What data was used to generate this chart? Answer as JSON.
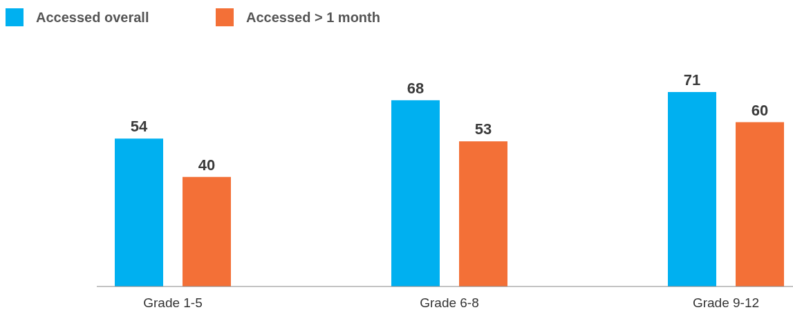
{
  "chart_data": {
    "type": "bar",
    "categories": [
      "Grade 1-5",
      "Grade 6-8",
      "Grade 9-12"
    ],
    "series": [
      {
        "name": "Accessed overall",
        "color": "#00b0f0",
        "values": [
          54,
          68,
          71
        ]
      },
      {
        "name": "Accessed > 1 month",
        "color": "#f37037",
        "values": [
          40,
          53,
          60
        ]
      }
    ],
    "data_labels": true,
    "legend": "top left"
  }
}
